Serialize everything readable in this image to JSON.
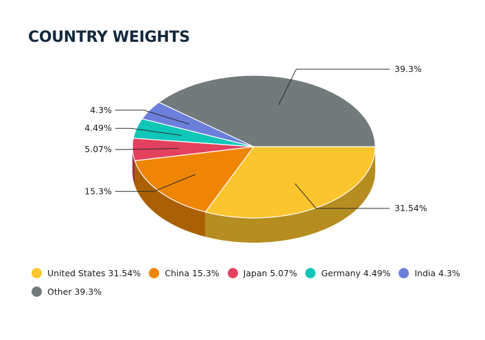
{
  "title": "COUNTRY WEIGHTS",
  "chart_data": {
    "type": "pie",
    "style": "3d",
    "slices": [
      {
        "label": "United States",
        "value": 31.54,
        "data_label": "31.54%",
        "legend": "United States 31.54%",
        "color": "#fcc42d"
      },
      {
        "label": "China",
        "value": 15.3,
        "data_label": "15.3%",
        "legend": "China 15.3%",
        "color": "#ee8505"
      },
      {
        "label": "Japan",
        "value": 5.07,
        "data_label": "5.07%",
        "legend": "Japan 5.07%",
        "color": "#e2425e"
      },
      {
        "label": "Germany",
        "value": 4.49,
        "data_label": "4.49%",
        "legend": "Germany 4.49%",
        "color": "#0fc6b8"
      },
      {
        "label": "India",
        "value": 4.3,
        "data_label": "4.3%",
        "legend": "India 4.3%",
        "color": "#6b7fdb"
      },
      {
        "label": "Other",
        "value": 39.3,
        "data_label": "39.3%",
        "legend": "Other 39.3%",
        "color": "#737a7c"
      }
    ],
    "start_direction": "right, clockwise",
    "legend_position": "bottom-left"
  }
}
